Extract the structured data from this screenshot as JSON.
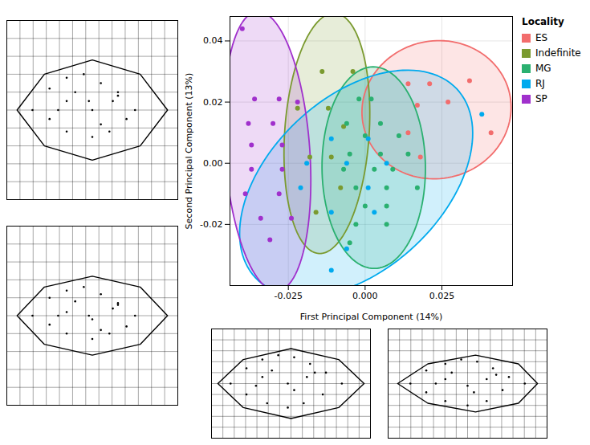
{
  "chart_data": [
    {
      "type": "scatter",
      "xlabel": "First Principal Component (14%)",
      "ylabel": "Second Principal Component (13%)",
      "legend_title": "Locality",
      "legend": "right",
      "grid": true,
      "n_std": 2.45,
      "xlim": [
        -0.044,
        0.048
      ],
      "ylim": [
        -0.04,
        0.048
      ],
      "xticks": [
        -0.025,
        {
          "value": 0.0,
          "label": "0.000"
        },
        0.025
      ],
      "yticks": [
        -0.02,
        {
          "value": 0.0,
          "label": "0.00"
        },
        0.02,
        0.04
      ],
      "series": [
        {
          "name": "ES",
          "color": "#f26d6d",
          "x": [
            0.014,
            0.021,
            0.034,
            0.017,
            0.027,
            0.014,
            0.041,
            0.018
          ],
          "y": [
            0.026,
            0.026,
            0.027,
            0.019,
            0.02,
            0.01,
            0.01,
            0.002
          ]
        },
        {
          "name": "Indefinite",
          "color": "#7a9a2f",
          "x": [
            -0.014,
            -0.004,
            -0.022,
            -0.012,
            -0.007,
            -0.018,
            -0.011,
            -0.008,
            -0.016
          ],
          "y": [
            0.03,
            0.03,
            0.018,
            0.018,
            0.012,
            0.002,
            0.002,
            -0.008,
            -0.016
          ]
        },
        {
          "name": "MG",
          "color": "#2ab070",
          "x": [
            -0.002,
            0.002,
            -0.006,
            0.005,
            0.0,
            0.011,
            -0.005,
            0.005,
            0.014,
            -0.007,
            0.003,
            0.009,
            -0.003,
            0.007,
            0.017,
            0.0,
            0.007,
            -0.003,
            0.007,
            -0.005
          ],
          "y": [
            0.021,
            0.021,
            0.013,
            0.013,
            0.009,
            0.009,
            0.003,
            0.003,
            0.003,
            -0.002,
            -0.002,
            -0.002,
            -0.008,
            -0.008,
            -0.008,
            -0.014,
            -0.014,
            -0.02,
            -0.02,
            -0.026
          ]
        },
        {
          "name": "RJ",
          "color": "#00aaee",
          "x": [
            0.038,
            -0.011,
            0.001,
            -0.019,
            -0.006,
            0.007,
            -0.021,
            0.001,
            -0.011,
            0.003,
            -0.006,
            -0.011
          ],
          "y": [
            0.016,
            0.008,
            0.008,
            0.0,
            0.0,
            0.0,
            -0.008,
            -0.008,
            -0.016,
            -0.016,
            -0.028,
            -0.035
          ]
        },
        {
          "name": "SP",
          "color": "#a030cc",
          "x": [
            -0.04,
            -0.036,
            -0.028,
            -0.022,
            -0.038,
            -0.03,
            -0.037,
            -0.027,
            -0.037,
            -0.027,
            -0.039,
            -0.028,
            -0.034,
            -0.024,
            -0.031
          ],
          "y": [
            0.044,
            0.021,
            0.021,
            0.02,
            0.013,
            0.013,
            0.006,
            0.006,
            -0.002,
            -0.002,
            -0.01,
            -0.01,
            -0.018,
            -0.018,
            -0.025
          ]
        }
      ]
    },
    {
      "type": "shape",
      "grid": true,
      "tick_labels": false,
      "xlim": [
        0,
        1
      ],
      "ylim": [
        0,
        1
      ],
      "xticks": [
        0,
        0.07692307692307693,
        0.15384615384615385,
        0.23076923076923078,
        0.3076923076923077,
        0.38461538461538464,
        0.46153846153846156,
        0.5384615384615384,
        0.6153846153846154,
        0.6923076923076923,
        0.7692307692307693,
        0.8461538461538461,
        0.9230769230769231,
        1
      ],
      "yticks": [
        0,
        0.1,
        0.2,
        0.3,
        0.4,
        0.5,
        0.6,
        0.7,
        0.8,
        0.9,
        1
      ],
      "x": [
        0.06,
        0.22,
        0.5,
        0.78,
        0.94,
        0.78,
        0.5,
        0.22,
        0.06
      ],
      "y": [
        0.5,
        0.7,
        0.78,
        0.7,
        0.5,
        0.3,
        0.22,
        0.3,
        0.5
      ],
      "points": {
        "x": [
          0.15,
          0.25,
          0.35,
          0.45,
          0.55,
          0.65,
          0.75,
          0.25,
          0.35,
          0.5,
          0.6,
          0.7,
          0.35,
          0.5,
          0.62,
          0.4,
          0.55,
          0.3,
          0.65,
          0.48
        ],
        "y": [
          0.5,
          0.62,
          0.68,
          0.7,
          0.65,
          0.58,
          0.5,
          0.45,
          0.38,
          0.35,
          0.38,
          0.45,
          0.55,
          0.5,
          0.55,
          0.6,
          0.42,
          0.5,
          0.6,
          0.55
        ]
      }
    },
    {
      "type": "shape",
      "grid": true,
      "tick_labels": false,
      "xlim": [
        0,
        1
      ],
      "ylim": [
        0,
        1
      ],
      "xticks": [
        0,
        0.07692307692307693,
        0.15384615384615385,
        0.23076923076923078,
        0.3076923076923077,
        0.38461538461538464,
        0.46153846153846156,
        0.5384615384615384,
        0.6153846153846154,
        0.6923076923076923,
        0.7692307692307693,
        0.8461538461538461,
        0.9230769230769231,
        1
      ],
      "yticks": [
        0,
        0.1,
        0.2,
        0.3,
        0.4,
        0.5,
        0.6,
        0.7,
        0.8,
        0.9,
        1
      ],
      "x": [
        0.06,
        0.22,
        0.5,
        0.78,
        0.94,
        0.78,
        0.5,
        0.22,
        0.06
      ],
      "y": [
        0.5,
        0.66,
        0.72,
        0.66,
        0.5,
        0.34,
        0.28,
        0.34,
        0.5
      ],
      "points": {
        "x": [
          0.15,
          0.25,
          0.35,
          0.45,
          0.55,
          0.65,
          0.75,
          0.25,
          0.35,
          0.5,
          0.6,
          0.7,
          0.35,
          0.5,
          0.62,
          0.4,
          0.55,
          0.3,
          0.65,
          0.48
        ],
        "y": [
          0.5,
          0.6,
          0.64,
          0.66,
          0.62,
          0.57,
          0.5,
          0.45,
          0.4,
          0.37,
          0.4,
          0.44,
          0.52,
          0.48,
          0.54,
          0.58,
          0.42,
          0.5,
          0.56,
          0.5
        ]
      }
    },
    {
      "type": "shape",
      "grid": true,
      "tick_labels": false,
      "xlim": [
        0,
        1
      ],
      "ylim": [
        0,
        1
      ],
      "xticks": [
        0,
        0.07142857142857142,
        0.14285714285714285,
        0.21428571428571427,
        0.2857142857142857,
        0.35714285714285715,
        0.42857142857142855,
        0.5,
        0.5714285714285714,
        0.6428571428571429,
        0.7142857142857143,
        0.7857142857142857,
        0.8571428571428571,
        0.9285714285714286,
        1
      ],
      "yticks": [
        0,
        0.1,
        0.2,
        0.3,
        0.4,
        0.5,
        0.6,
        0.7,
        0.8,
        0.9,
        1
      ],
      "x": [
        0.04,
        0.2,
        0.5,
        0.8,
        0.96,
        0.8,
        0.5,
        0.2,
        0.04
      ],
      "y": [
        0.5,
        0.72,
        0.82,
        0.72,
        0.5,
        0.28,
        0.18,
        0.28,
        0.5
      ],
      "points": {
        "x": [
          0.12,
          0.22,
          0.32,
          0.42,
          0.52,
          0.62,
          0.72,
          0.82,
          0.22,
          0.35,
          0.48,
          0.58,
          0.7,
          0.32,
          0.48,
          0.6,
          0.38,
          0.52,
          0.28,
          0.65
        ],
        "y": [
          0.5,
          0.64,
          0.72,
          0.76,
          0.74,
          0.68,
          0.6,
          0.5,
          0.4,
          0.32,
          0.28,
          0.32,
          0.4,
          0.56,
          0.5,
          0.56,
          0.62,
          0.44,
          0.48,
          0.6
        ]
      }
    },
    {
      "type": "shape",
      "grid": true,
      "tick_labels": false,
      "xlim": [
        0,
        1
      ],
      "ylim": [
        0,
        1
      ],
      "xticks": [
        0,
        0.07142857142857142,
        0.14285714285714285,
        0.21428571428571427,
        0.2857142857142857,
        0.35714285714285715,
        0.42857142857142855,
        0.5,
        0.5714285714285714,
        0.6428571428571429,
        0.7142857142857143,
        0.7857142857142857,
        0.8571428571428571,
        0.9285714285714286,
        1
      ],
      "yticks": [
        0,
        0.1,
        0.2,
        0.3,
        0.4,
        0.5,
        0.6,
        0.7,
        0.8,
        0.9,
        1
      ],
      "x": [
        0.06,
        0.25,
        0.55,
        0.82,
        0.94,
        0.82,
        0.55,
        0.25,
        0.06
      ],
      "y": [
        0.5,
        0.68,
        0.76,
        0.68,
        0.5,
        0.32,
        0.24,
        0.32,
        0.5
      ],
      "points": {
        "x": [
          0.14,
          0.24,
          0.36,
          0.46,
          0.56,
          0.66,
          0.76,
          0.86,
          0.24,
          0.36,
          0.5,
          0.62,
          0.72,
          0.36,
          0.5,
          0.62,
          0.4,
          0.54,
          0.3,
          0.68
        ],
        "y": [
          0.5,
          0.62,
          0.68,
          0.72,
          0.7,
          0.64,
          0.56,
          0.5,
          0.42,
          0.34,
          0.3,
          0.34,
          0.44,
          0.54,
          0.48,
          0.54,
          0.6,
          0.42,
          0.5,
          0.58
        ]
      }
    }
  ]
}
